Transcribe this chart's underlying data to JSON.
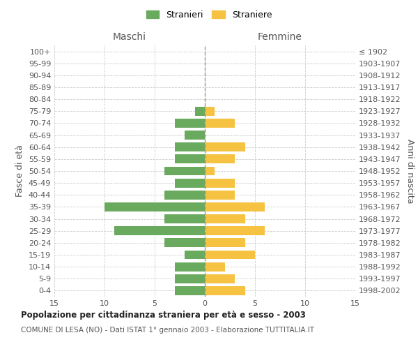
{
  "age_groups": [
    "0-4",
    "5-9",
    "10-14",
    "15-19",
    "20-24",
    "25-29",
    "30-34",
    "35-39",
    "40-44",
    "45-49",
    "50-54",
    "55-59",
    "60-64",
    "65-69",
    "70-74",
    "75-79",
    "80-84",
    "85-89",
    "90-94",
    "95-99",
    "100+"
  ],
  "birth_years": [
    "1998-2002",
    "1993-1997",
    "1988-1992",
    "1983-1987",
    "1978-1982",
    "1973-1977",
    "1968-1972",
    "1963-1967",
    "1958-1962",
    "1953-1957",
    "1948-1952",
    "1943-1947",
    "1938-1942",
    "1933-1937",
    "1928-1932",
    "1923-1927",
    "1918-1922",
    "1913-1917",
    "1908-1912",
    "1903-1907",
    "≤ 1902"
  ],
  "maschi": [
    3,
    3,
    3,
    2,
    4,
    9,
    4,
    10,
    4,
    3,
    4,
    3,
    3,
    2,
    3,
    1,
    0,
    0,
    0,
    0,
    0
  ],
  "femmine": [
    4,
    3,
    2,
    5,
    4,
    6,
    4,
    6,
    3,
    3,
    1,
    3,
    4,
    0,
    3,
    1,
    0,
    0,
    0,
    0,
    0
  ],
  "maschi_color": "#6aaa5e",
  "femmine_color": "#f5c242",
  "title": "Popolazione per cittadinanza straniera per età e sesso - 2003",
  "subtitle": "COMUNE DI LESA (NO) - Dati ISTAT 1° gennaio 2003 - Elaborazione TUTTITALIA.IT",
  "ylabel_left": "Fasce di età",
  "ylabel_right": "Anni di nascita",
  "legend_stranieri": "Stranieri",
  "legend_straniere": "Straniere",
  "xlim": 15,
  "maschi_header": "Maschi",
  "femmine_header": "Femmine",
  "background_color": "#ffffff",
  "grid_color": "#cccccc",
  "bar_height": 0.75
}
